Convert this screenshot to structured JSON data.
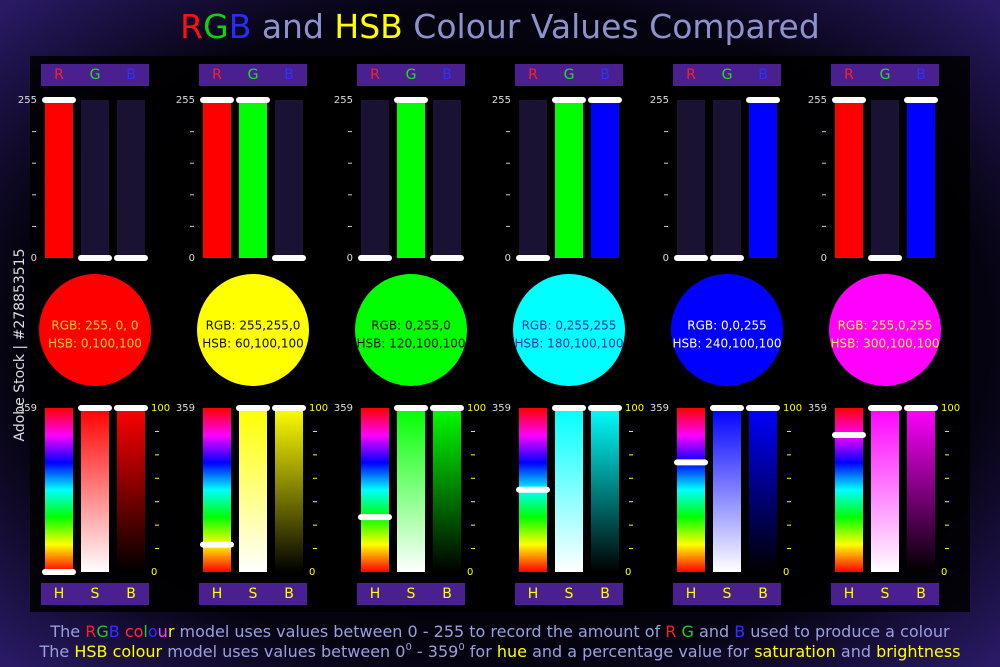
{
  "title": [
    {
      "text": "R",
      "color": "#ff1010"
    },
    {
      "text": "G",
      "color": "#10d010"
    },
    {
      "text": "B",
      "color": "#2a2aff"
    },
    {
      "text": " and ",
      "color": "#8d92cc"
    },
    {
      "text": "HSB",
      "color": "#ffff00"
    },
    {
      "text": " Colour Values Compared",
      "color": "#8d92cc"
    }
  ],
  "rgb_header": [
    {
      "text": "R",
      "color": "#ff2020"
    },
    {
      "text": "G",
      "color": "#20e020"
    },
    {
      "text": "B",
      "color": "#3030ff"
    }
  ],
  "hsb_header": [
    {
      "text": "H",
      "color": "#ffff00"
    },
    {
      "text": "S",
      "color": "#ffff00"
    },
    {
      "text": "B",
      "color": "#ffff00"
    }
  ],
  "rgb_ticks": [
    0,
    255
  ],
  "hue_ticks": [
    0,
    359
  ],
  "percent_ticks": [
    0,
    100
  ],
  "swatches": [
    {
      "rgb": [
        255,
        0,
        0
      ],
      "hsb": [
        0,
        100,
        100
      ],
      "rgb_label": "RGB: 255, 0, 0",
      "hsb_label": "HSB: 0,100,100",
      "label_color": "#ffcc33"
    },
    {
      "rgb": [
        255,
        255,
        0
      ],
      "hsb": [
        60,
        100,
        100
      ],
      "rgb_label": "RGB: 255,255,0",
      "hsb_label": "HSB: 60,100,100",
      "label_color": "#111111"
    },
    {
      "rgb": [
        0,
        255,
        0
      ],
      "hsb": [
        120,
        100,
        100
      ],
      "rgb_label": "RGB: 0,255,0",
      "hsb_label": "HSB: 120,100,100",
      "label_color": "#111111"
    },
    {
      "rgb": [
        0,
        255,
        255
      ],
      "hsb": [
        180,
        100,
        100
      ],
      "rgb_label": "RGB: 0,255,255",
      "hsb_label": "HSB: 180,100,100",
      "label_color": "#2233aa"
    },
    {
      "rgb": [
        0,
        0,
        255
      ],
      "hsb": [
        240,
        100,
        100
      ],
      "rgb_label": "RGB: 0,0,255",
      "hsb_label": "HSB: 240,100,100",
      "label_color": "#ffffff"
    },
    {
      "rgb": [
        255,
        0,
        255
      ],
      "hsb": [
        300,
        100,
        100
      ],
      "rgb_label": "RGB: 255,0,255",
      "hsb_label": "HSB: 300,100,100",
      "label_color": "#ffee44"
    }
  ],
  "footer": [
    [
      {
        "text": "The ",
        "color": "#9aa0dd"
      },
      {
        "text": "R",
        "color": "#ff2020"
      },
      {
        "text": "G",
        "color": "#20d020"
      },
      {
        "text": "B",
        "color": "#3030ff"
      },
      {
        "text": " ",
        "color": "#9aa0dd"
      },
      {
        "text": "co",
        "color": "#ff3030"
      },
      {
        "text": "l",
        "color": "#20d020"
      },
      {
        "text": "o",
        "color": "#3030ff"
      },
      {
        "text": "u",
        "color": "#ff40ff"
      },
      {
        "text": "r",
        "color": "#ffff00"
      },
      {
        "text": " model uses values between 0 - 255 to record the amount of ",
        "color": "#9aa0dd"
      },
      {
        "text": "R",
        "color": "#ff2020"
      },
      {
        "text": " ",
        "color": "#9aa0dd"
      },
      {
        "text": "G",
        "color": "#20d020"
      },
      {
        "text": " and ",
        "color": "#9aa0dd"
      },
      {
        "text": "B",
        "color": "#3030ff"
      },
      {
        "text": " used to produce a colour",
        "color": "#9aa0dd"
      }
    ],
    [
      {
        "text": "The ",
        "color": "#9aa0dd"
      },
      {
        "text": "HSB colour",
        "color": "#ffff00"
      },
      {
        "text": " model uses values between 0",
        "color": "#9aa0dd"
      },
      {
        "text": "0",
        "color": "#9aa0dd",
        "sup": true
      },
      {
        "text": " - 359",
        "color": "#9aa0dd"
      },
      {
        "text": "0",
        "color": "#9aa0dd",
        "sup": true
      },
      {
        "text": " for ",
        "color": "#9aa0dd"
      },
      {
        "text": "hue",
        "color": "#ffff00"
      },
      {
        "text": " and a percentage value for ",
        "color": "#9aa0dd"
      },
      {
        "text": "saturation",
        "color": "#ffff00"
      },
      {
        "text": " and ",
        "color": "#9aa0dd"
      },
      {
        "text": "brightness",
        "color": "#ffff00"
      }
    ]
  ],
  "watermark": "Adobe Stock | #278853515"
}
